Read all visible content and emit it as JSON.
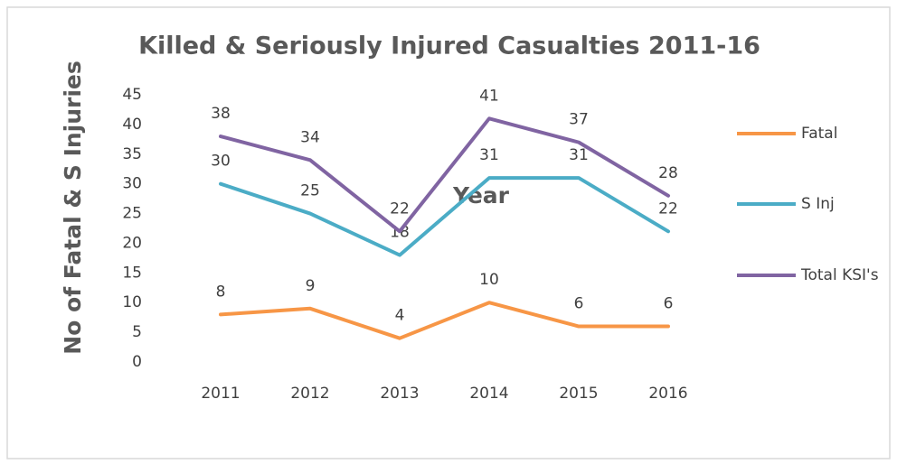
{
  "chart_data": {
    "type": "line",
    "title": "Killed & Seriously Injured Casualties 2011-16",
    "x_label": "Year",
    "y_label": "No of Fatal & S Injuries",
    "categories": [
      "2011",
      "2012",
      "2013",
      "2014",
      "2015",
      "2016"
    ],
    "series": [
      {
        "name": "Fatal",
        "color": "#f79646",
        "values": [
          8,
          9,
          4,
          10,
          6,
          6
        ]
      },
      {
        "name": "S Inj",
        "color": "#4bacc6",
        "values": [
          30,
          25,
          18,
          31,
          31,
          22
        ]
      },
      {
        "name": "Total KSI's",
        "color": "#8064a2",
        "values": [
          38,
          34,
          22,
          41,
          37,
          28
        ]
      }
    ],
    "ylim": [
      0,
      45
    ],
    "yticks": [
      0,
      5,
      10,
      15,
      20,
      25,
      30,
      35,
      40,
      45
    ],
    "grid": false,
    "legend": "right"
  }
}
